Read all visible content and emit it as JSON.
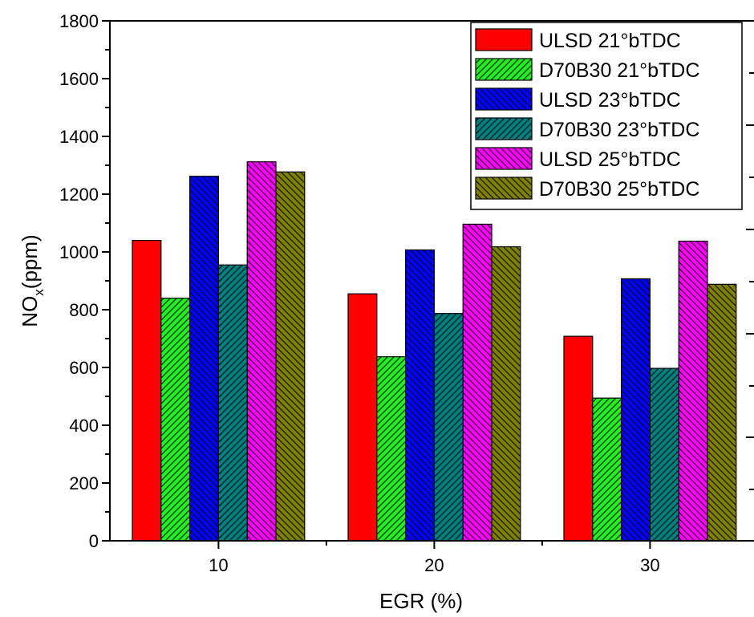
{
  "chart_data": {
    "type": "bar",
    "xlabel": "EGR (%)",
    "ylabel_main": "NO",
    "ylabel_sub": "x",
    "ylabel_unit": "(ppm)",
    "categories": [
      "10",
      "20",
      "30"
    ],
    "ylim": [
      0,
      1800
    ],
    "yticks": [
      "0",
      "200",
      "400",
      "600",
      "800",
      "1000",
      "1200",
      "1400",
      "1600",
      "1800"
    ],
    "grid": false,
    "legend_position": "top-right",
    "series": [
      {
        "name": "ULSD 21°bTDC",
        "values": [
          1040,
          855,
          708
        ],
        "color": "#ff0000",
        "hatch": "none"
      },
      {
        "name": "D70B30 21°bTDC",
        "values": [
          840,
          637,
          494
        ],
        "color": "#22ee22",
        "hatch": "forward"
      },
      {
        "name": "ULSD 23°bTDC",
        "values": [
          1262,
          1007,
          907
        ],
        "color": "#0000ff",
        "hatch": "back"
      },
      {
        "name": "D70B30 23°bTDC",
        "values": [
          955,
          787,
          597
        ],
        "color": "#008080",
        "hatch": "forward"
      },
      {
        "name": "ULSD 25°bTDC",
        "values": [
          1312,
          1096,
          1037
        ],
        "color": "#ff00ff",
        "hatch": "back"
      },
      {
        "name": "D70B30 25°bTDC",
        "values": [
          1277,
          1018,
          888
        ],
        "color": "#808000",
        "hatch": "back"
      }
    ]
  }
}
